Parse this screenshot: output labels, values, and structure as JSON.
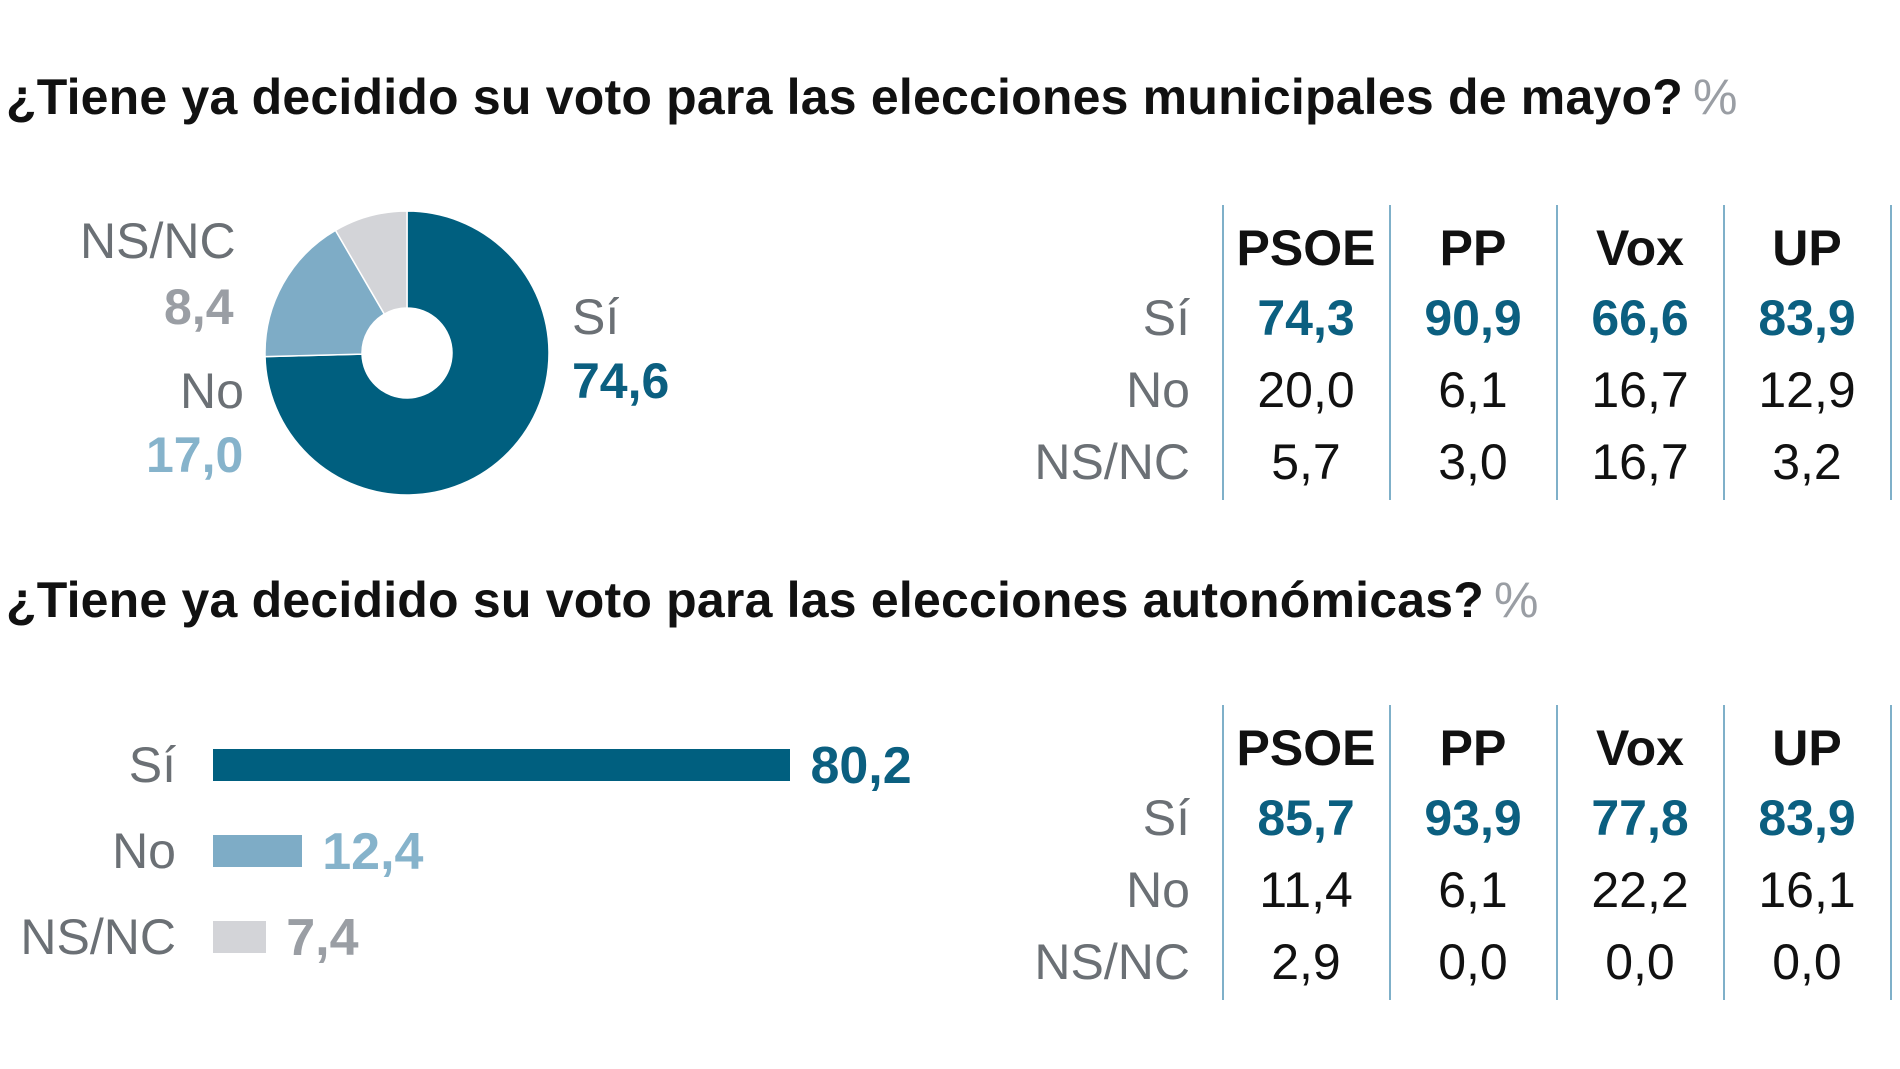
{
  "colors": {
    "si": "#005f7f",
    "no": "#7eacc6",
    "nsnc": "#d3d4d8",
    "si_text": "#0b5f80",
    "no_text": "#86b3cb",
    "nsnc_text": "#9a9ea4",
    "table_line": "#7fb0c9"
  },
  "section1": {
    "title": "¿Tiene ya decidido su voto para las elecciones municipales de mayo?",
    "unit": "%"
  },
  "section2": {
    "title": "¿Tiene ya decidido su voto para las elecciones autonómicas?",
    "unit": "%"
  },
  "chart_data": [
    {
      "type": "pie",
      "title": "¿Tiene ya decidido su voto para las elecciones municipales de mayo?",
      "unit": "%",
      "donut": true,
      "slices": [
        {
          "label": "Sí",
          "value": 74.6,
          "display": "74,6"
        },
        {
          "label": "No",
          "value": 17.0,
          "display": "17,0"
        },
        {
          "label": "NS/NC",
          "value": 8.4,
          "display": "8,4"
        }
      ]
    },
    {
      "type": "table",
      "title": "¿Tiene ya decidido su voto para las elecciones municipales de mayo?",
      "columns": [
        "PSOE",
        "PP",
        "Vox",
        "UP"
      ],
      "rows": [
        {
          "label": "Sí",
          "values": [
            "74,3",
            "90,9",
            "66,6",
            "83,9"
          ]
        },
        {
          "label": "No",
          "values": [
            "20,0",
            "6,1",
            "16,7",
            "12,9"
          ]
        },
        {
          "label": "NS/NC",
          "values": [
            "5,7",
            "3,0",
            "16,7",
            "3,2"
          ]
        }
      ]
    },
    {
      "type": "bar",
      "orientation": "horizontal",
      "title": "¿Tiene ya decidido su voto para las elecciones autonómicas?",
      "unit": "%",
      "categories": [
        "Sí",
        "No",
        "NS/NC"
      ],
      "values": [
        80.2,
        12.4,
        7.4
      ],
      "display": [
        "80,2",
        "12,4",
        "7,4"
      ],
      "xlim": [
        0,
        100
      ]
    },
    {
      "type": "table",
      "title": "¿Tiene ya decidido su voto para las elecciones autonómicas?",
      "columns": [
        "PSOE",
        "PP",
        "Vox",
        "UP"
      ],
      "rows": [
        {
          "label": "Sí",
          "values": [
            "85,7",
            "93,9",
            "77,8",
            "83,9"
          ]
        },
        {
          "label": "No",
          "values": [
            "11,4",
            "6,1",
            "22,2",
            "16,1"
          ]
        },
        {
          "label": "NS/NC",
          "values": [
            "2,9",
            "0,0",
            "0,0",
            "0,0"
          ]
        }
      ]
    }
  ]
}
